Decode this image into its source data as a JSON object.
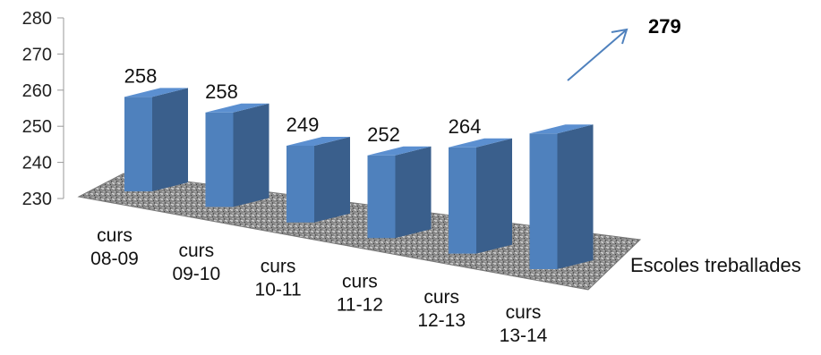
{
  "chart_data": {
    "type": "bar",
    "categories": [
      [
        "curs",
        "08-09"
      ],
      [
        "curs",
        "09-10"
      ],
      [
        "curs",
        "10-11"
      ],
      [
        "curs",
        "11-12"
      ],
      [
        "curs",
        "12-13"
      ],
      [
        "curs",
        "13-14"
      ]
    ],
    "series": [
      {
        "name": "Escoles treballades",
        "values": [
          258,
          258,
          249,
          252,
          264,
          279
        ]
      }
    ],
    "data_labels": [
      "258",
      "258",
      "249",
      "252",
      "264",
      ""
    ],
    "y_ticks": [
      "230",
      "240",
      "250",
      "260",
      "270",
      "280"
    ],
    "ylim": [
      230,
      280
    ],
    "annotation": "279",
    "style": "3d-column",
    "colors": {
      "bar_front": "#4f81bd",
      "bar_side": "#3a5f8c",
      "bar_top": "#5b8fd0",
      "floor": "#8c8c8c",
      "arrow": "#4f81bd"
    }
  }
}
